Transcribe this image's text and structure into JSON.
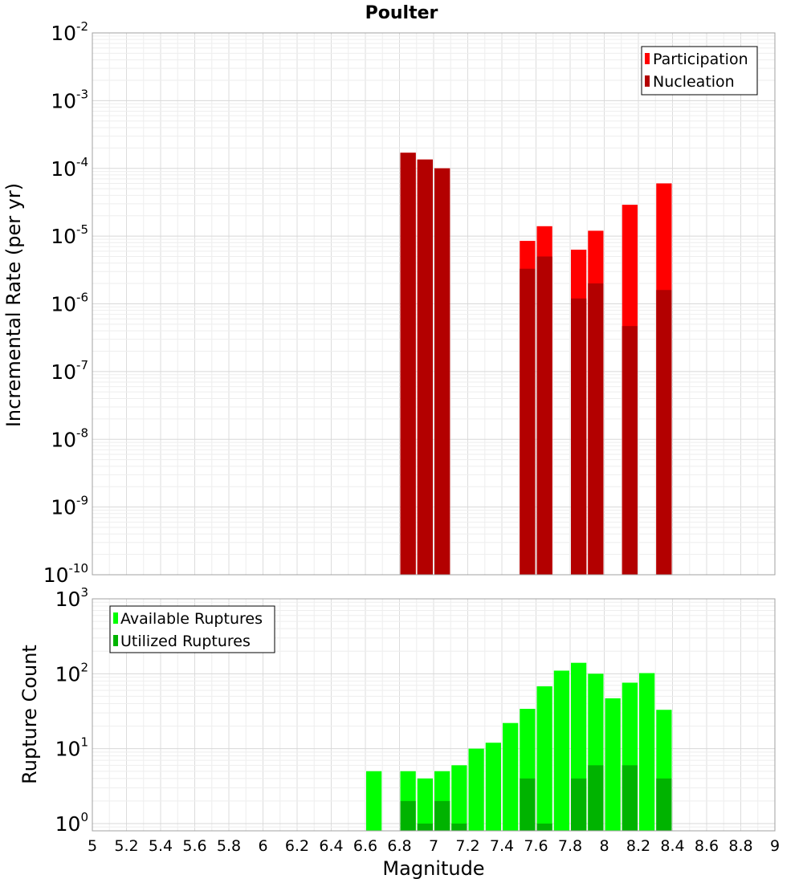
{
  "chart_data": [
    {
      "type": "bar",
      "title": "Poulter",
      "xlabel": "",
      "ylabel": "Incremental Rate (per yr)",
      "yscale": "log",
      "ylim": [
        1e-10,
        0.01
      ],
      "xlim": [
        5,
        9
      ],
      "legend_position": "top-right",
      "series": [
        {
          "name": "Participation",
          "color": "#ff0000",
          "points": [
            {
              "x": 6.85,
              "y": 0.00017
            },
            {
              "x": 6.95,
              "y": 0.000135
            },
            {
              "x": 7.05,
              "y": 0.0001
            },
            {
              "x": 7.55,
              "y": 8.5e-06
            },
            {
              "x": 7.65,
              "y": 1.4e-05
            },
            {
              "x": 7.85,
              "y": 6.3e-06
            },
            {
              "x": 7.95,
              "y": 1.2e-05
            },
            {
              "x": 8.15,
              "y": 2.9e-05
            },
            {
              "x": 8.35,
              "y": 6e-05
            }
          ]
        },
        {
          "name": "Nucleation",
          "color": "#b30000",
          "points": [
            {
              "x": 6.85,
              "y": 0.00017
            },
            {
              "x": 6.95,
              "y": 0.000135
            },
            {
              "x": 7.05,
              "y": 0.0001
            },
            {
              "x": 7.55,
              "y": 3.3e-06
            },
            {
              "x": 7.65,
              "y": 5e-06
            },
            {
              "x": 7.85,
              "y": 1.2e-06
            },
            {
              "x": 7.95,
              "y": 2e-06
            },
            {
              "x": 8.15,
              "y": 4.7e-07
            },
            {
              "x": 8.35,
              "y": 1.6e-06
            }
          ]
        }
      ]
    },
    {
      "type": "bar",
      "title": "",
      "xlabel": "Magnitude",
      "ylabel": "Rupture Count",
      "yscale": "log",
      "ylim": [
        0.8,
        1000
      ],
      "xlim": [
        5,
        9
      ],
      "legend_position": "top-left",
      "series": [
        {
          "name": "Available Ruptures",
          "color": "#00ff00",
          "points": [
            {
              "x": 6.65,
              "y": 5
            },
            {
              "x": 6.85,
              "y": 5
            },
            {
              "x": 6.95,
              "y": 4
            },
            {
              "x": 7.05,
              "y": 5
            },
            {
              "x": 7.15,
              "y": 6
            },
            {
              "x": 7.25,
              "y": 10
            },
            {
              "x": 7.35,
              "y": 12
            },
            {
              "x": 7.45,
              "y": 22
            },
            {
              "x": 7.55,
              "y": 34
            },
            {
              "x": 7.65,
              "y": 68
            },
            {
              "x": 7.75,
              "y": 110
            },
            {
              "x": 7.85,
              "y": 140
            },
            {
              "x": 7.95,
              "y": 100
            },
            {
              "x": 8.05,
              "y": 47
            },
            {
              "x": 8.15,
              "y": 76
            },
            {
              "x": 8.25,
              "y": 102
            },
            {
              "x": 8.35,
              "y": 33
            }
          ]
        },
        {
          "name": "Utilized Ruptures",
          "color": "#00b300",
          "points": [
            {
              "x": 6.85,
              "y": 2
            },
            {
              "x": 6.95,
              "y": 1
            },
            {
              "x": 7.05,
              "y": 2
            },
            {
              "x": 7.15,
              "y": 1
            },
            {
              "x": 7.55,
              "y": 4
            },
            {
              "x": 7.65,
              "y": 1
            },
            {
              "x": 7.85,
              "y": 4
            },
            {
              "x": 7.95,
              "y": 6
            },
            {
              "x": 8.15,
              "y": 6
            },
            {
              "x": 8.35,
              "y": 4
            }
          ]
        }
      ]
    }
  ],
  "x_axis": {
    "label": "Magnitude",
    "ticks": [
      "5",
      "5.2",
      "5.4",
      "5.6",
      "5.8",
      "6",
      "6.2",
      "6.4",
      "6.6",
      "6.8",
      "7",
      "7.2",
      "7.4",
      "7.6",
      "7.8",
      "8",
      "8.2",
      "8.4",
      "8.6",
      "8.8",
      "9"
    ]
  },
  "top_y_ticks": [
    {
      "base": "10",
      "exp": "-10",
      "value": 1e-10
    },
    {
      "base": "10",
      "exp": "-9",
      "value": 1e-09
    },
    {
      "base": "10",
      "exp": "-8",
      "value": 1e-08
    },
    {
      "base": "10",
      "exp": "-7",
      "value": 1e-07
    },
    {
      "base": "10",
      "exp": "-6",
      "value": 1e-06
    },
    {
      "base": "10",
      "exp": "-5",
      "value": 1e-05
    },
    {
      "base": "10",
      "exp": "-4",
      "value": 0.0001
    },
    {
      "base": "10",
      "exp": "-3",
      "value": 0.001
    },
    {
      "base": "10",
      "exp": "-2",
      "value": 0.01
    }
  ],
  "bottom_y_ticks": [
    {
      "base": "10",
      "exp": "0",
      "value": 1
    },
    {
      "base": "10",
      "exp": "1",
      "value": 10
    },
    {
      "base": "10",
      "exp": "2",
      "value": 100
    },
    {
      "base": "10",
      "exp": "3",
      "value": 1000
    }
  ]
}
